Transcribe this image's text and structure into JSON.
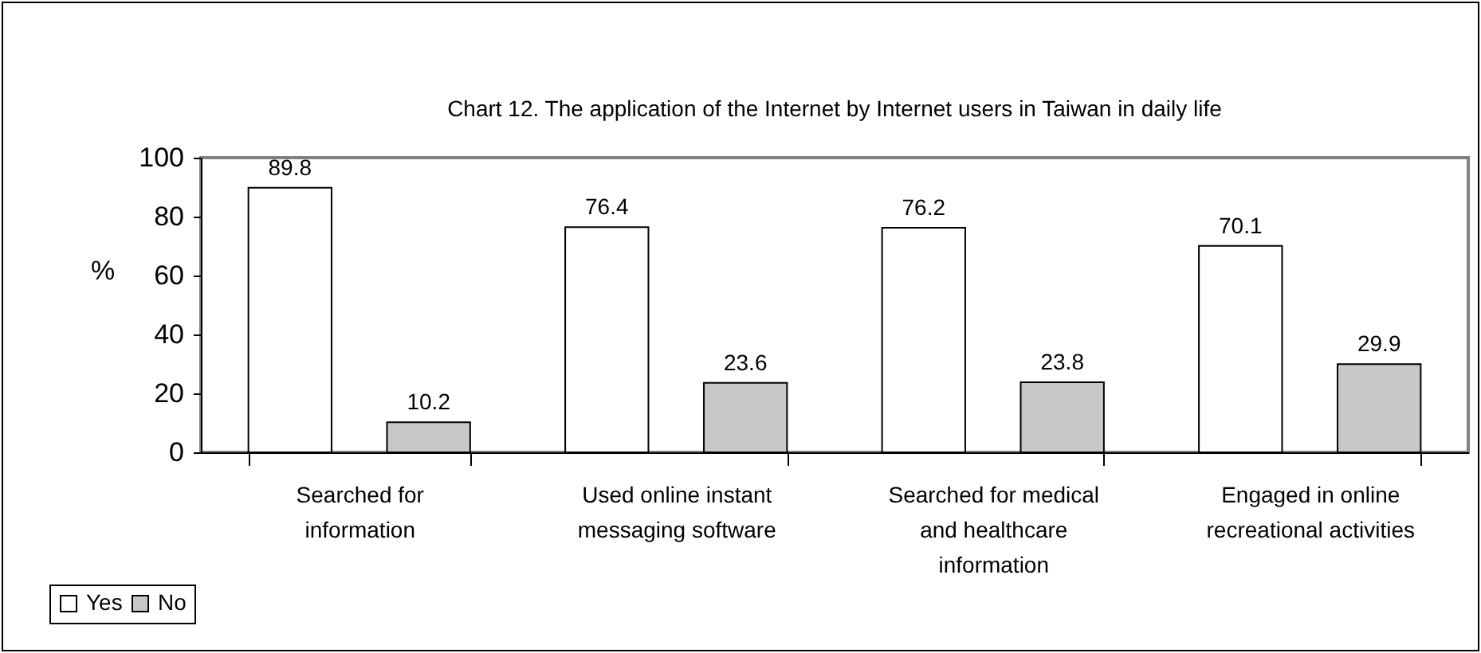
{
  "chart_data": {
    "type": "bar",
    "title": "Chart 12. The application of the Internet by Internet users in Taiwan in daily life",
    "ylabel": "%",
    "categories": [
      "Searched for information",
      "Used online instant messaging software",
      "Searched for medical and healthcare information",
      "Engaged in online recreational activities"
    ],
    "series": [
      {
        "name": "Yes",
        "color": "#ffffff",
        "values": [
          89.8,
          76.4,
          76.2,
          70.1
        ]
      },
      {
        "name": "No",
        "color": "#c8c8c8",
        "values": [
          10.2,
          23.6,
          23.8,
          29.9
        ]
      }
    ],
    "ylim": [
      0,
      100
    ],
    "yticks": [
      0,
      20,
      40,
      60,
      80,
      100
    ],
    "data_labels": true,
    "legend": "bottom left",
    "grid": false
  }
}
